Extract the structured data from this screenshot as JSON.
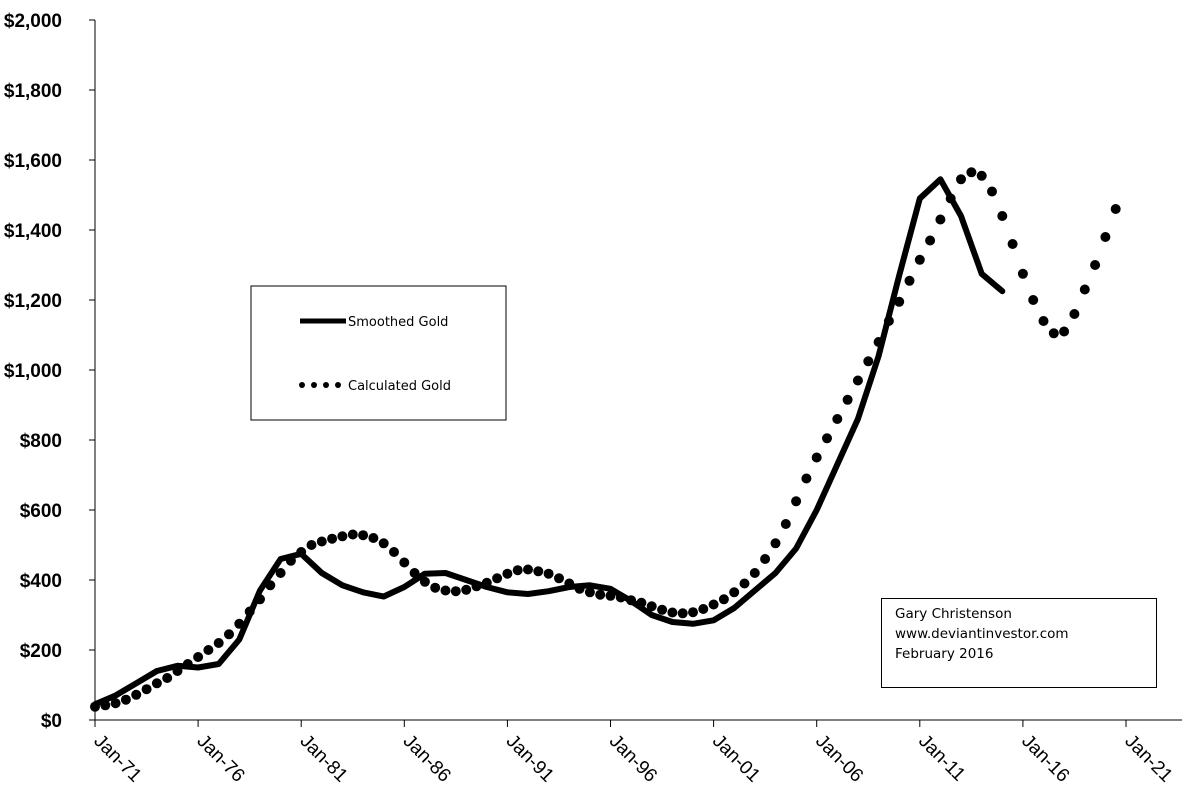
{
  "chart_data": {
    "type": "line",
    "title": "",
    "xlabel": "",
    "ylabel": "",
    "ylim": [
      0,
      2000
    ],
    "yticks": [
      "$0",
      "$200",
      "$400",
      "$600",
      "$800",
      "$1,000",
      "$1,200",
      "$1,400",
      "$1,600",
      "$1,800",
      "$2,000"
    ],
    "yticks_values": [
      0,
      200,
      400,
      600,
      800,
      1000,
      1200,
      1400,
      1600,
      1800,
      2000
    ],
    "xlim": [
      1971,
      2021
    ],
    "xticks": [
      "Jan-71",
      "Jan-76",
      "Jan-81",
      "Jan-86",
      "Jan-91",
      "Jan-96",
      "Jan-01",
      "Jan-06",
      "Jan-11",
      "Jan-16",
      "Jan-21"
    ],
    "xticks_values": [
      1971,
      1976,
      1981,
      1986,
      1991,
      1996,
      2001,
      2006,
      2011,
      2016,
      2021
    ],
    "grid": false,
    "legend_position": "center-left",
    "series": [
      {
        "name": "Smoothed Gold",
        "style": "solid",
        "color": "#000000",
        "x": [
          1971,
          1972,
          1973,
          1974,
          1975,
          1976,
          1977,
          1978,
          1979,
          1980,
          1981,
          1982,
          1983,
          1984,
          1985,
          1986,
          1987,
          1988,
          1989,
          1990,
          1991,
          1992,
          1993,
          1994,
          1995,
          1996,
          1997,
          1998,
          1999,
          2000,
          2001,
          2002,
          2003,
          2004,
          2005,
          2006,
          2007,
          2008,
          2009,
          2010,
          2011,
          2012,
          2013,
          2014,
          2015
        ],
        "y": [
          45,
          70,
          105,
          140,
          155,
          150,
          160,
          230,
          370,
          460,
          475,
          420,
          385,
          365,
          353,
          380,
          418,
          420,
          400,
          380,
          365,
          360,
          368,
          380,
          385,
          375,
          340,
          300,
          280,
          275,
          285,
          320,
          370,
          420,
          490,
          600,
          730,
          860,
          1040,
          1270,
          1490,
          1545,
          1440,
          1275,
          1225
        ]
      },
      {
        "name": "Calculated Gold",
        "style": "dotted",
        "color": "#000000",
        "x": [
          1971,
          1971.5,
          1972,
          1972.5,
          1973,
          1973.5,
          1974,
          1974.5,
          1975,
          1975.5,
          1976,
          1976.5,
          1977,
          1977.5,
          1978,
          1978.5,
          1979,
          1979.5,
          1980,
          1980.5,
          1981,
          1981.5,
          1982,
          1982.5,
          1983,
          1983.5,
          1984,
          1984.5,
          1985,
          1985.5,
          1986,
          1986.5,
          1987,
          1987.5,
          1988,
          1988.5,
          1989,
          1989.5,
          1990,
          1990.5,
          1991,
          1991.5,
          1992,
          1992.5,
          1993,
          1993.5,
          1994,
          1994.5,
          1995,
          1995.5,
          1996,
          1996.5,
          1997,
          1997.5,
          1998,
          1998.5,
          1999,
          1999.5,
          2000,
          2000.5,
          2001,
          2001.5,
          2002,
          2002.5,
          2003,
          2003.5,
          2004,
          2004.5,
          2005,
          2005.5,
          2006,
          2006.5,
          2007,
          2007.5,
          2008,
          2008.5,
          2009,
          2009.5,
          2010,
          2010.5,
          2011,
          2011.5,
          2012,
          2012.5,
          2013,
          2013.5,
          2014,
          2014.5,
          2015,
          2015.5,
          2016,
          2016.5,
          2017,
          2017.5,
          2018,
          2018.5,
          2019,
          2019.5,
          2020,
          2020.5
        ],
        "y": [
          38,
          42,
          48,
          58,
          72,
          88,
          105,
          120,
          140,
          160,
          180,
          200,
          220,
          245,
          275,
          310,
          345,
          385,
          420,
          455,
          480,
          500,
          510,
          518,
          525,
          530,
          528,
          520,
          505,
          480,
          450,
          420,
          395,
          378,
          370,
          368,
          372,
          382,
          392,
          405,
          418,
          428,
          430,
          425,
          418,
          405,
          390,
          375,
          365,
          358,
          355,
          350,
          342,
          335,
          325,
          315,
          307,
          305,
          308,
          317,
          330,
          345,
          365,
          390,
          420,
          460,
          505,
          560,
          625,
          690,
          750,
          805,
          860,
          915,
          970,
          1025,
          1080,
          1140,
          1195,
          1255,
          1315,
          1370,
          1430,
          1490,
          1545,
          1565,
          1555,
          1510,
          1440,
          1360,
          1275,
          1200,
          1140,
          1105,
          1110,
          1160,
          1230,
          1300,
          1380,
          1460
        ]
      }
    ]
  },
  "legend": {
    "smoothed_label": "Smoothed Gold",
    "calculated_label": "Calculated Gold"
  },
  "credit": {
    "line1": "Gary Christenson",
    "line2": "www.deviantinvestor.com",
    "line3": "February 2016"
  }
}
